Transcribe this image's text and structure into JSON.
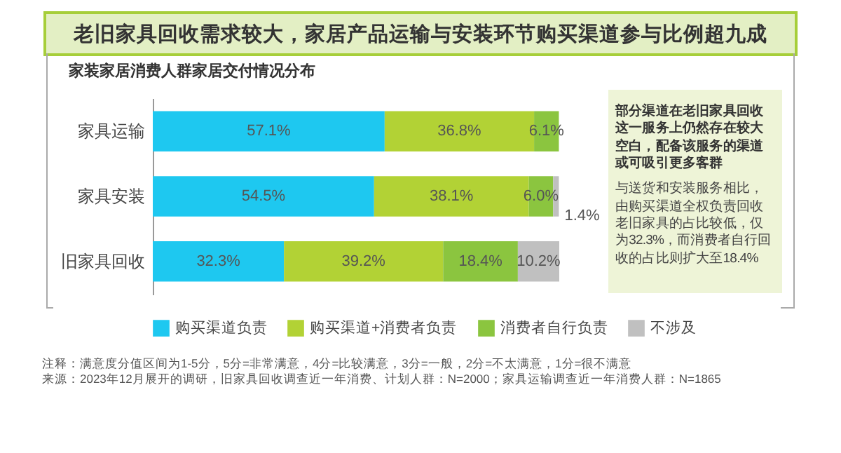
{
  "chart_data": {
    "type": "bar",
    "orientation": "horizontal",
    "stacked": true,
    "title": "老旧家具回收需求较大，家居产品运输与安装环节购买渠道参与比例超九成",
    "subtitle": "家装家居消费人群家居交付情况分布",
    "categories": [
      "家具运输",
      "家具安装",
      "旧家具回收"
    ],
    "series": [
      {
        "name": "购买渠道负责",
        "color": "#1ec8f0",
        "values": [
          57.1,
          54.5,
          32.3
        ],
        "value_labels": [
          "57.1%",
          "54.5%",
          "32.3%"
        ]
      },
      {
        "name": "购买渠道+消费者负责",
        "color": "#b2d235",
        "values": [
          36.8,
          38.1,
          39.2
        ],
        "value_labels": [
          "36.8%",
          "38.1%",
          "39.2%"
        ]
      },
      {
        "name": "消费者自行负责",
        "color": "#8bc53f",
        "values": [
          6.1,
          6.0,
          18.4
        ],
        "value_labels": [
          "6.1%",
          "6.0%",
          "18.4%"
        ]
      },
      {
        "name": "不涉及",
        "color": "#c0c0c0",
        "values": [
          null,
          1.4,
          10.2
        ],
        "value_labels": [
          null,
          "1.4%",
          "10.2%"
        ]
      }
    ],
    "legend": "bottom",
    "tick_labels": "y",
    "annotations": [
      "部分渠道在老旧家具回收这一服务上仍然存在较大空白，配备该服务的渠道或可吸引更多客群",
      "与送货和安装服务相比，由购买渠道全权负责回收老旧家具的占比较低，仅为32.3%，而消费者自行回收的占比则扩大至18.4%",
      "注释：满意度分值区间为1-5分，5分=非常满意，4分=比较满意，3分=一般，2分=不太满意，1分=很不满意",
      "来源：2023年12月展开的调研，旧家具回收调查近一年消费、计划人群：N=2000；家具运输调查近一年消费人群：N=1865"
    ]
  }
}
